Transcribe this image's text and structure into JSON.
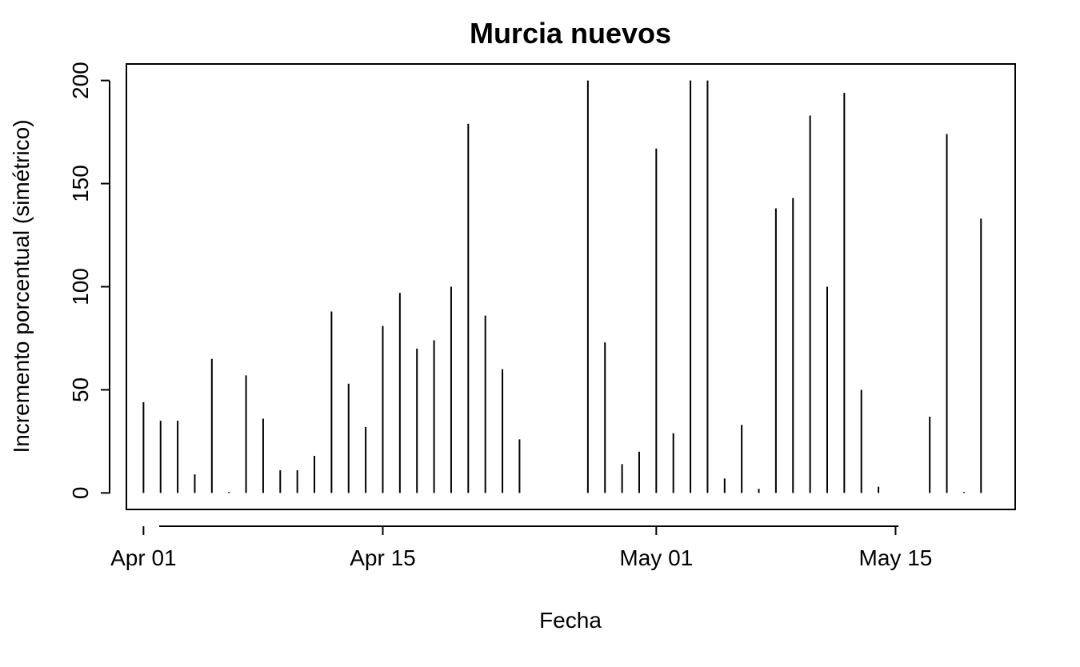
{
  "chart_data": {
    "type": "bar",
    "title": "Murcia nuevos",
    "xlabel": "Fecha",
    "ylabel": "Incremento porcentual (simétrico)",
    "x_type": "date",
    "xlim": [
      "2020-03-31",
      "2020-05-22"
    ],
    "ylim": [
      -8,
      208
    ],
    "yticks": [
      0,
      50,
      100,
      150,
      200
    ],
    "xticks": [
      {
        "date": "2020-04-01",
        "label": "Apr 01"
      },
      {
        "date": "2020-04-15",
        "label": "Apr 15"
      },
      {
        "date": "2020-05-01",
        "label": "May 01"
      },
      {
        "date": "2020-05-15",
        "label": "May 15"
      }
    ],
    "grid": false,
    "series": [
      {
        "x": [
          "2020-04-01",
          "2020-04-02",
          "2020-04-03",
          "2020-04-04",
          "2020-04-05",
          "2020-04-06",
          "2020-04-07",
          "2020-04-08",
          "2020-04-09",
          "2020-04-10",
          "2020-04-11",
          "2020-04-12",
          "2020-04-13",
          "2020-04-14",
          "2020-04-15",
          "2020-04-16",
          "2020-04-17",
          "2020-04-18",
          "2020-04-19",
          "2020-04-20",
          "2020-04-21",
          "2020-04-22",
          "2020-04-23",
          "2020-04-27",
          "2020-04-28",
          "2020-04-29",
          "2020-04-30",
          "2020-05-01",
          "2020-05-02",
          "2020-05-03",
          "2020-05-04",
          "2020-05-05",
          "2020-05-06",
          "2020-05-07",
          "2020-05-08",
          "2020-05-09",
          "2020-05-10",
          "2020-05-11",
          "2020-05-12",
          "2020-05-13",
          "2020-05-14",
          "2020-05-17",
          "2020-05-18",
          "2020-05-19",
          "2020-05-20"
        ],
        "values": [
          44,
          35,
          35,
          9,
          65,
          0.5,
          57,
          36,
          11,
          11,
          18,
          88,
          53,
          32,
          81,
          97,
          70,
          74,
          100,
          179,
          86,
          60,
          26,
          200,
          73,
          14,
          20,
          167,
          29,
          200,
          200,
          7,
          33,
          2,
          138,
          143,
          183,
          100,
          194,
          50,
          3,
          37,
          174,
          0.5,
          133
        ]
      }
    ]
  }
}
